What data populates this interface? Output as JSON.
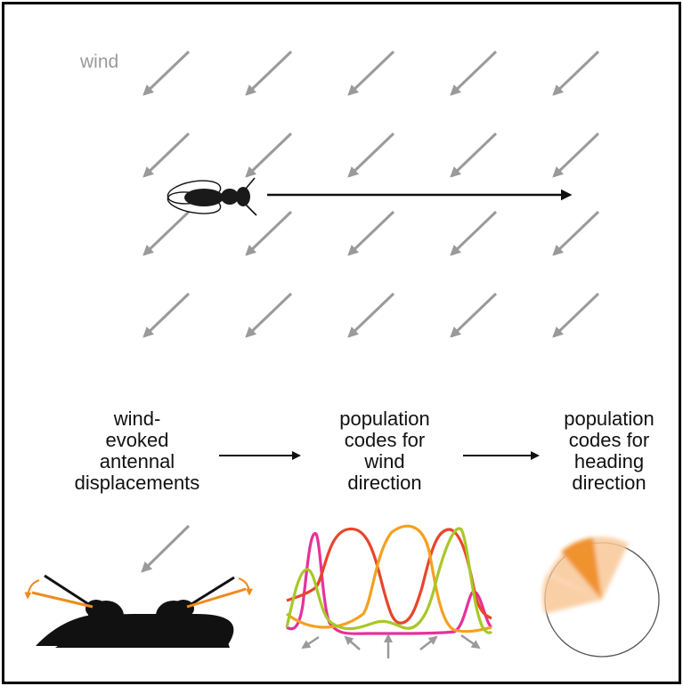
{
  "wind_label": "wind",
  "stages": [
    {
      "lines": [
        "wind-",
        "evoked",
        "antennal",
        "displacements"
      ]
    },
    {
      "lines": [
        "population",
        "codes for",
        "wind",
        "direction"
      ]
    },
    {
      "lines": [
        "population",
        "codes for",
        "heading",
        "direction"
      ]
    }
  ],
  "colors": {
    "wind_arrow": "#9a9a9a",
    "fly": "#1a1a1a",
    "antenna_highlight": "#f08a1e",
    "curve_pink": "#e8309a",
    "curve_red": "#e8452a",
    "curve_orange": "#f5a020",
    "curve_green": "#a8c828",
    "heading_strong": "#f0922e",
    "heading_light": "#f8c896"
  },
  "icons": {
    "wind_arrow": "wind-arrow-icon",
    "fly": "fly-icon",
    "heading_arrow": "heading-arrow-icon"
  }
}
